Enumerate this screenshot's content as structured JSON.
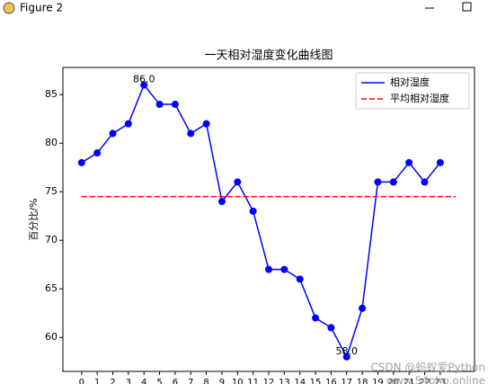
{
  "window_title": "Figure 2",
  "chart_data": {
    "type": "line",
    "title": "一天相对湿度变化曲线图",
    "ylabel": "百分比/%",
    "xlim": [
      -1.2,
      25.2
    ],
    "xticks": [
      0,
      1,
      2,
      3,
      4,
      5,
      6,
      7,
      8,
      9,
      10,
      11,
      12,
      13,
      14,
      15,
      16,
      17,
      18,
      19,
      20,
      21,
      22,
      23
    ],
    "ylim": [
      56.5,
      87.8
    ],
    "yticks": [
      60,
      65,
      70,
      75,
      80,
      85
    ],
    "series": [
      {
        "name": "相对湿度",
        "color": "#0000ff",
        "marker": "o",
        "x": [
          0,
          1,
          2,
          3,
          4,
          5,
          6,
          7,
          8,
          9,
          10,
          11,
          12,
          13,
          14,
          15,
          16,
          17,
          18,
          19,
          20,
          21,
          22,
          23
        ],
        "values": [
          78,
          79,
          81,
          82,
          86,
          84,
          84,
          81,
          82,
          74,
          76,
          73,
          67,
          67,
          66,
          62,
          61,
          58,
          63,
          76,
          76,
          78,
          76,
          78
        ]
      },
      {
        "name": "平均相对湿度",
        "color": "#ff0000",
        "linestyle": "dashed",
        "x": [
          0,
          24
        ],
        "values": [
          74.5,
          74.5
        ]
      }
    ],
    "annotations": [
      {
        "text": "86.0",
        "x": 4,
        "y": 86
      },
      {
        "text": "58.0",
        "x": 17,
        "y": 58
      }
    ],
    "legend": "upper right",
    "watermarks": [
      "CSDN @蚂蚁爱Python",
      "www.54php.online"
    ]
  }
}
